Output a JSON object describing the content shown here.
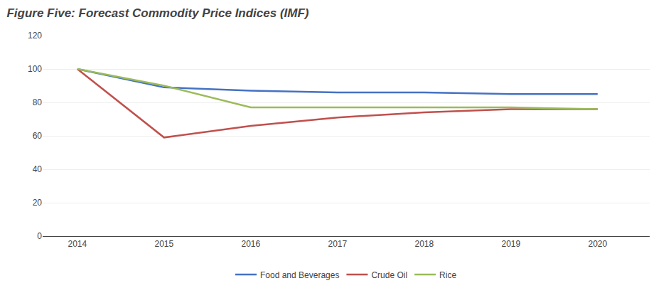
{
  "chart_data": {
    "type": "line",
    "title": "Figure Five: Forecast Commodity Price Indices (IMF)",
    "x": [
      2014,
      2015,
      2016,
      2017,
      2018,
      2019,
      2020
    ],
    "series": [
      {
        "name": "Food and Beverages",
        "color": "#4472C4",
        "values": [
          100,
          89,
          87,
          86,
          86,
          85,
          85
        ]
      },
      {
        "name": "Crude Oil",
        "color": "#C0504D",
        "values": [
          100,
          59,
          66,
          71,
          74,
          76,
          76
        ]
      },
      {
        "name": "Rice",
        "color": "#9BBB59",
        "values": [
          100,
          90,
          77,
          77,
          77,
          77,
          76
        ]
      }
    ],
    "xlim": [
      2013.6,
      2020.6
    ],
    "xticks": [
      2014,
      2015,
      2016,
      2017,
      2018,
      2019,
      2020
    ],
    "ylim": [
      0,
      120
    ],
    "yticks": [
      0,
      20,
      40,
      60,
      80,
      100,
      120
    ],
    "grid": true,
    "legend": "bottom"
  }
}
